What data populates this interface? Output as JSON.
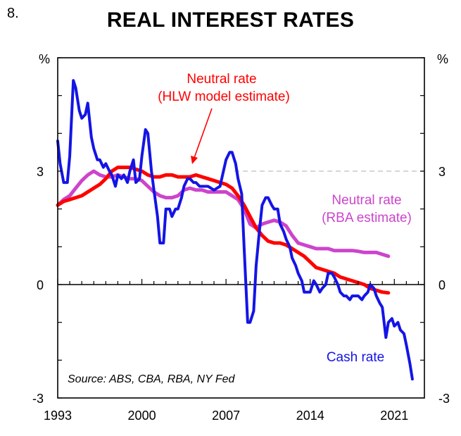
{
  "figure": {
    "number": "8.",
    "title": "REAL INTEREST RATES"
  },
  "chart_data": {
    "type": "line",
    "title": "REAL INTEREST RATES",
    "unit_left": "%",
    "unit_right": "%",
    "xlim": [
      1993.0,
      2023.5
    ],
    "ylim": [
      -3,
      6
    ],
    "x_ticks": [
      1993,
      2000,
      2007,
      2014,
      2021
    ],
    "x_tick_labels": [
      "1993",
      "2000",
      "2007",
      "2014",
      "2021"
    ],
    "y_ticks": [
      -3,
      0,
      3
    ],
    "y_tick_labels": [
      "-3",
      "0",
      "3"
    ],
    "reference_line": {
      "y": 3,
      "style": "dashed"
    },
    "source": "Source: ABS, CBA, RBA, NY Fed",
    "colors": {
      "cash": "#1414e6",
      "hlw": "#ff0000",
      "rba": "#cc44cc",
      "ref": "#c8c8c8"
    },
    "series": [
      {
        "name": "Cash rate",
        "label": "Cash rate",
        "x": [
          1993.0,
          1993.2,
          1993.5,
          1993.8,
          1994.0,
          1994.3,
          1994.5,
          1994.8,
          1995.0,
          1995.3,
          1995.5,
          1995.8,
          1996.0,
          1996.3,
          1996.5,
          1996.8,
          1997.0,
          1997.3,
          1997.5,
          1997.8,
          1998.0,
          1998.3,
          1998.5,
          1998.8,
          1999.0,
          1999.3,
          1999.5,
          1999.8,
          2000.0,
          2000.3,
          2000.5,
          2000.8,
          2001.0,
          2001.3,
          2001.5,
          2001.8,
          2002.0,
          2002.3,
          2002.5,
          2002.8,
          2003.0,
          2003.3,
          2003.5,
          2003.8,
          2004.0,
          2004.3,
          2004.5,
          2004.8,
          2005.0,
          2005.5,
          2006.0,
          2006.5,
          2007.0,
          2007.3,
          2007.5,
          2007.8,
          2008.0,
          2008.3,
          2008.5,
          2008.8,
          2009.0,
          2009.3,
          2009.5,
          2009.8,
          2010.0,
          2010.3,
          2010.5,
          2010.8,
          2011.0,
          2011.3,
          2011.5,
          2011.8,
          2012.0,
          2012.3,
          2012.5,
          2012.8,
          2013.0,
          2013.3,
          2013.5,
          2013.8,
          2014.0,
          2014.3,
          2014.5,
          2014.8,
          2015.0,
          2015.3,
          2015.5,
          2015.8,
          2016.0,
          2016.3,
          2016.5,
          2016.8,
          2017.0,
          2017.3,
          2017.5,
          2017.8,
          2018.0,
          2018.3,
          2018.5,
          2018.8,
          2019.0,
          2019.3,
          2019.5,
          2019.8,
          2020.0,
          2020.3,
          2020.5,
          2020.8,
          2021.0,
          2021.3,
          2021.5,
          2021.8,
          2022.0,
          2022.3,
          2022.5
        ],
        "values": [
          3.8,
          3.2,
          2.7,
          2.7,
          3.4,
          5.4,
          5.2,
          4.6,
          4.4,
          4.5,
          4.8,
          3.9,
          3.6,
          3.3,
          3.3,
          3.1,
          3.2,
          3.0,
          2.9,
          2.6,
          2.9,
          2.8,
          2.9,
          2.7,
          3.0,
          3.3,
          2.7,
          2.8,
          3.4,
          4.1,
          4.0,
          3.0,
          2.5,
          1.8,
          1.1,
          1.1,
          2.0,
          2.0,
          1.8,
          2.0,
          2.0,
          2.3,
          2.6,
          2.8,
          2.8,
          2.7,
          2.7,
          2.6,
          2.6,
          2.6,
          2.5,
          2.6,
          3.3,
          3.5,
          3.5,
          3.2,
          2.8,
          2.4,
          1.0,
          -1.0,
          -1.0,
          -0.7,
          0.5,
          1.5,
          2.1,
          2.3,
          2.3,
          2.1,
          2.0,
          2.0,
          1.6,
          1.4,
          1.2,
          1.0,
          0.7,
          0.5,
          0.3,
          0.1,
          -0.2,
          -0.2,
          -0.2,
          0.1,
          0.0,
          -0.2,
          -0.1,
          0.0,
          0.3,
          0.3,
          0.2,
          0.0,
          -0.2,
          -0.3,
          -0.3,
          -0.4,
          -0.3,
          -0.3,
          -0.3,
          -0.4,
          -0.3,
          -0.2,
          0.0,
          -0.1,
          -0.3,
          -0.5,
          -0.6,
          -1.4,
          -1.0,
          -0.9,
          -1.1,
          -1.0,
          -1.2,
          -1.3,
          -1.6,
          -2.1,
          -2.5
        ]
      },
      {
        "name": "Neutral rate (HLW model estimate)",
        "label": [
          "Neutral rate",
          "(HLW model estimate)"
        ],
        "x": [
          1993.0,
          1993.5,
          1994.0,
          1994.5,
          1995.0,
          1995.5,
          1996.0,
          1996.5,
          1997.0,
          1997.5,
          1998.0,
          1998.5,
          1999.0,
          1999.5,
          2000.0,
          2000.5,
          2001.0,
          2001.5,
          2002.0,
          2002.5,
          2003.0,
          2003.5,
          2004.0,
          2004.5,
          2005.0,
          2005.5,
          2006.0,
          2006.5,
          2007.0,
          2007.5,
          2008.0,
          2008.5,
          2009.0,
          2009.5,
          2010.0,
          2010.5,
          2011.0,
          2011.5,
          2012.0,
          2012.5,
          2013.0,
          2013.5,
          2014.0,
          2014.5,
          2015.0,
          2015.5,
          2016.0,
          2016.5,
          2017.0,
          2017.5,
          2018.0,
          2018.5,
          2019.0,
          2019.5,
          2020.0,
          2020.5
        ],
        "values": [
          2.1,
          2.2,
          2.25,
          2.3,
          2.35,
          2.45,
          2.55,
          2.65,
          2.8,
          3.0,
          3.1,
          3.1,
          3.1,
          3.05,
          3.0,
          2.9,
          2.85,
          2.85,
          2.9,
          2.9,
          2.85,
          2.85,
          2.85,
          2.9,
          2.85,
          2.8,
          2.75,
          2.7,
          2.65,
          2.55,
          2.35,
          2.1,
          1.8,
          1.5,
          1.3,
          1.15,
          1.1,
          1.1,
          1.05,
          0.95,
          0.85,
          0.75,
          0.6,
          0.45,
          0.4,
          0.35,
          0.3,
          0.2,
          0.15,
          0.1,
          0.05,
          0.0,
          -0.1,
          -0.15,
          -0.2,
          -0.22
        ]
      },
      {
        "name": "Neutral rate (RBA estimate)",
        "label": [
          "Neutral rate",
          "(RBA estimate)"
        ],
        "x": [
          1993.0,
          1993.5,
          1994.0,
          1994.5,
          1995.0,
          1995.5,
          1996.0,
          1996.5,
          1997.0,
          1997.5,
          1998.0,
          1998.5,
          1999.0,
          1999.5,
          2000.0,
          2000.5,
          2001.0,
          2001.5,
          2002.0,
          2002.5,
          2003.0,
          2003.5,
          2004.0,
          2004.5,
          2005.0,
          2005.5,
          2006.0,
          2006.5,
          2007.0,
          2007.5,
          2008.0,
          2008.5,
          2009.0,
          2009.5,
          2010.0,
          2010.5,
          2011.0,
          2011.5,
          2012.0,
          2012.5,
          2013.0,
          2013.5,
          2014.0,
          2014.5,
          2015.0,
          2015.5,
          2016.0,
          2016.5,
          2017.0,
          2017.5,
          2018.0,
          2018.5,
          2019.0,
          2019.5,
          2020.0,
          2020.5
        ],
        "values": [
          2.1,
          2.25,
          2.35,
          2.55,
          2.75,
          2.9,
          3.0,
          2.9,
          2.85,
          2.85,
          2.9,
          2.85,
          2.8,
          2.8,
          2.75,
          2.6,
          2.45,
          2.35,
          2.3,
          2.3,
          2.35,
          2.5,
          2.55,
          2.5,
          2.5,
          2.45,
          2.45,
          2.45,
          2.45,
          2.35,
          2.25,
          2.0,
          1.6,
          1.5,
          1.6,
          1.65,
          1.7,
          1.65,
          1.55,
          1.3,
          1.1,
          1.05,
          1.0,
          0.95,
          0.95,
          0.95,
          0.9,
          0.9,
          0.9,
          0.9,
          0.88,
          0.85,
          0.85,
          0.85,
          0.8,
          0.75
        ]
      }
    ]
  }
}
